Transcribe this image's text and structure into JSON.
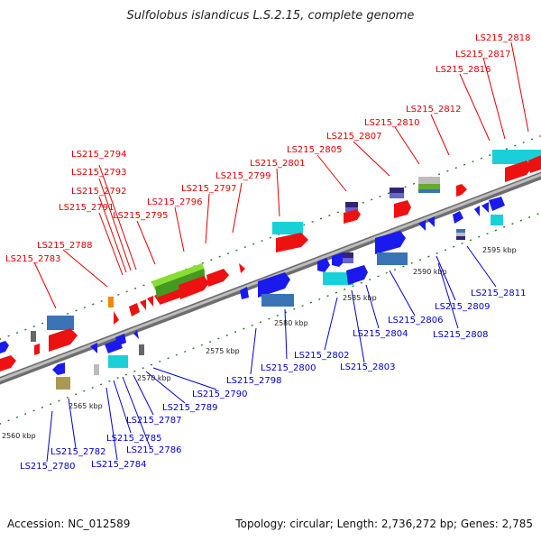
{
  "title": "Sulfolobus islandicus L.S.2.15, complete genome",
  "footer": {
    "accession": "Accession: NC_012589",
    "topology": "Topology: circular; Length: 2,736,272 bp; Genes: 2,785"
  },
  "colors": {
    "label_red": "#e00000",
    "label_blue": "#0000cc",
    "backbone": "#8a8a8a"
  },
  "scale_labels": [
    "2560 kbp",
    "2565 kbp",
    "2570 kbp",
    "2575 kbp",
    "2580 kbp",
    "2585 kbp",
    "2590 kbp",
    "2595 kbp"
  ],
  "top_labels": [
    "LS215_2818",
    "LS215_2817",
    "LS215_2816",
    "LS215_2812",
    "LS215_2810",
    "LS215_2807",
    "LS215_2805",
    "LS215_2801",
    "LS215_2799",
    "LS215_2797",
    "LS215_2796",
    "LS215_2795",
    "LS215_2794",
    "LS215_2793",
    "LS215_2792",
    "LS215_2791",
    "LS215_2788",
    "LS215_2783"
  ],
  "bottom_labels": [
    "LS215_2811",
    "LS215_2809",
    "LS215_2808",
    "LS215_2806",
    "LS215_2804",
    "LS215_2803",
    "LS215_2802",
    "LS215_2800",
    "LS215_2798",
    "LS215_2790",
    "LS215_2789",
    "LS215_2787",
    "LS215_2786",
    "LS215_2785",
    "LS215_2784",
    "LS215_2782",
    "LS215_2780"
  ]
}
